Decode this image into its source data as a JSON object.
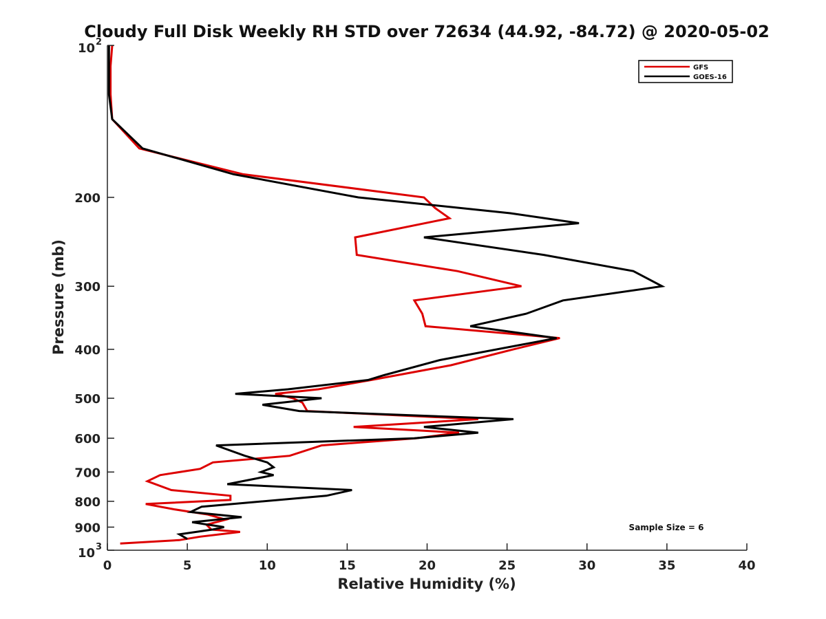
{
  "chart_data": {
    "type": "line",
    "title": "Cloudy Full Disk Weekly RH STD over 72634 (44.92, -84.72) @ 2020-05-02",
    "xlabel": "Relative Humidity (%)",
    "ylabel": "Pressure (mb)",
    "xlim": [
      0,
      40
    ],
    "ylim": [
      100,
      1000
    ],
    "y_scale": "log",
    "y_reversed": true,
    "grid": false,
    "legend_position": "top-right",
    "x_ticks": [
      "0",
      "5",
      "10",
      "15",
      "20",
      "25",
      "30",
      "35",
      "40"
    ],
    "y_ticks": [
      {
        "value": 100,
        "label": "10",
        "sup": "2"
      },
      {
        "value": 200,
        "label": "200"
      },
      {
        "value": 300,
        "label": "300"
      },
      {
        "value": 400,
        "label": "400"
      },
      {
        "value": 500,
        "label": "500"
      },
      {
        "value": 600,
        "label": "600"
      },
      {
        "value": 700,
        "label": "700"
      },
      {
        "value": 800,
        "label": "800"
      },
      {
        "value": 900,
        "label": "900"
      },
      {
        "value": 1000,
        "label": "10",
        "sup": "3"
      }
    ],
    "annotation": "Sample Size = 6",
    "series": [
      {
        "name": "GFS",
        "color": "#dd0000",
        "points": [
          [
            0.3,
            100
          ],
          [
            0.2,
            110
          ],
          [
            0.2,
            125
          ],
          [
            0.3,
            140
          ],
          [
            2.0,
            160
          ],
          [
            8.5,
            180
          ],
          [
            19.8,
            200
          ],
          [
            20.5,
            210
          ],
          [
            21.4,
            220
          ],
          [
            15.5,
            240
          ],
          [
            15.6,
            260
          ],
          [
            21.9,
            280
          ],
          [
            25.9,
            300
          ],
          [
            19.2,
            320
          ],
          [
            19.7,
            340
          ],
          [
            19.9,
            360
          ],
          [
            28.3,
            380
          ],
          [
            25.4,
            400
          ],
          [
            21.5,
            430
          ],
          [
            16.5,
            460
          ],
          [
            13.2,
            480
          ],
          [
            10.5,
            490
          ],
          [
            11.6,
            500
          ],
          [
            12.2,
            510
          ],
          [
            12.5,
            530
          ],
          [
            23.2,
            550
          ],
          [
            15.4,
            570
          ],
          [
            22.0,
            585
          ],
          [
            19.3,
            600
          ],
          [
            13.4,
            620
          ],
          [
            11.4,
            650
          ],
          [
            6.6,
            670
          ],
          [
            5.8,
            690
          ],
          [
            3.3,
            710
          ],
          [
            2.5,
            730
          ],
          [
            4.0,
            760
          ],
          [
            7.7,
            780
          ],
          [
            7.7,
            795
          ],
          [
            2.4,
            810
          ],
          [
            4.2,
            830
          ],
          [
            6.3,
            850
          ],
          [
            7.4,
            870
          ],
          [
            6.2,
            890
          ],
          [
            6.5,
            910
          ],
          [
            8.3,
            920
          ],
          [
            5.8,
            940
          ],
          [
            4.5,
            955
          ],
          [
            0.8,
            970
          ]
        ]
      },
      {
        "name": "GOES-16",
        "color": "#000000",
        "points": [
          [
            0.1,
            100
          ],
          [
            0.1,
            110
          ],
          [
            0.1,
            125
          ],
          [
            0.3,
            140
          ],
          [
            2.2,
            160
          ],
          [
            7.9,
            180
          ],
          [
            15.7,
            200
          ],
          [
            25.2,
            215
          ],
          [
            29.5,
            225
          ],
          [
            19.8,
            240
          ],
          [
            27.3,
            260
          ],
          [
            32.9,
            280
          ],
          [
            34.7,
            300
          ],
          [
            28.5,
            320
          ],
          [
            26.2,
            340
          ],
          [
            22.7,
            360
          ],
          [
            28.1,
            380
          ],
          [
            20.8,
            420
          ],
          [
            17.3,
            450
          ],
          [
            16.3,
            460
          ],
          [
            11.3,
            480
          ],
          [
            8.0,
            490
          ],
          [
            13.4,
            500
          ],
          [
            9.7,
            515
          ],
          [
            12.0,
            530
          ],
          [
            25.4,
            550
          ],
          [
            19.8,
            570
          ],
          [
            23.2,
            585
          ],
          [
            19.2,
            600
          ],
          [
            6.8,
            620
          ],
          [
            8.6,
            650
          ],
          [
            10.0,
            670
          ],
          [
            10.4,
            685
          ],
          [
            9.6,
            700
          ],
          [
            10.4,
            710
          ],
          [
            7.5,
            740
          ],
          [
            15.3,
            760
          ],
          [
            13.7,
            780
          ],
          [
            5.9,
            820
          ],
          [
            5.2,
            840
          ],
          [
            8.4,
            860
          ],
          [
            5.3,
            880
          ],
          [
            7.3,
            900
          ],
          [
            6.6,
            910
          ],
          [
            4.5,
            930
          ],
          [
            5.0,
            950
          ]
        ]
      }
    ]
  }
}
